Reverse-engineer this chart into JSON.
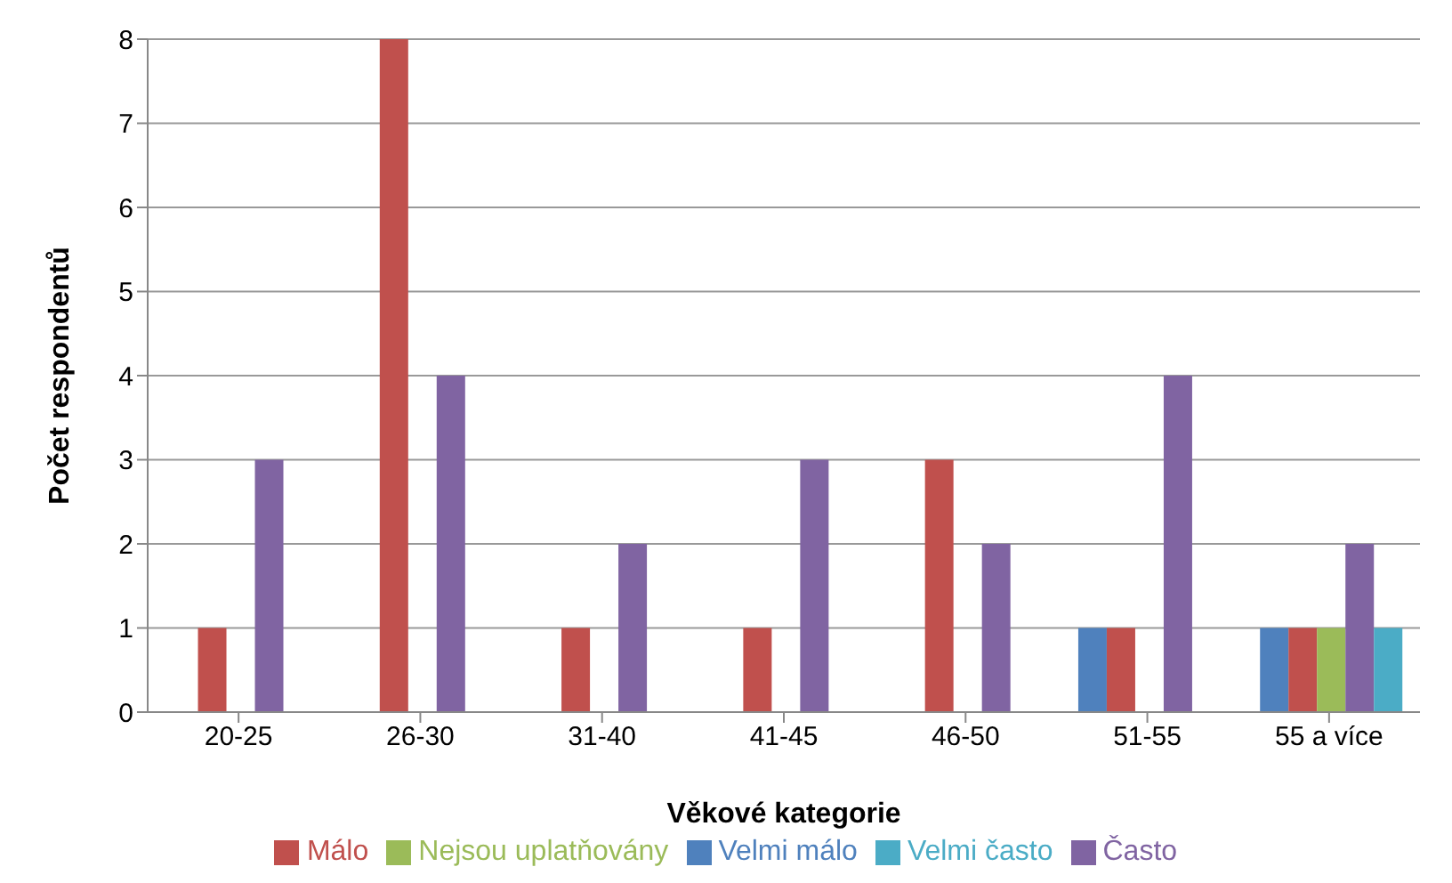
{
  "chart_data": {
    "type": "bar",
    "xlabel": "Věkové kategorie",
    "ylabel": "Počet respondentů",
    "categories": [
      "20-25",
      "26-30",
      "31-40",
      "41-45",
      "46-50",
      "51-55",
      "55 a více"
    ],
    "series": [
      {
        "name": "Velmi málo",
        "color": "#4f81bd",
        "values": [
          null,
          null,
          null,
          null,
          null,
          1,
          1
        ]
      },
      {
        "name": "Málo",
        "color": "#c0504d",
        "values": [
          1,
          8,
          1,
          1,
          3,
          1,
          1
        ]
      },
      {
        "name": "Nejsou uplatňovány",
        "color": "#9bbb59",
        "values": [
          null,
          null,
          null,
          null,
          null,
          null,
          1
        ]
      },
      {
        "name": "Často",
        "color": "#8064a2",
        "values": [
          3,
          4,
          2,
          3,
          2,
          4,
          2
        ]
      },
      {
        "name": "Velmi často",
        "color": "#4bacc6",
        "values": [
          null,
          null,
          null,
          null,
          null,
          null,
          1
        ]
      }
    ],
    "ylim": [
      0,
      8
    ],
    "yticks": [
      0,
      1,
      2,
      3,
      4,
      5,
      6,
      7,
      8
    ],
    "grid": "y",
    "legend": "bottom"
  }
}
